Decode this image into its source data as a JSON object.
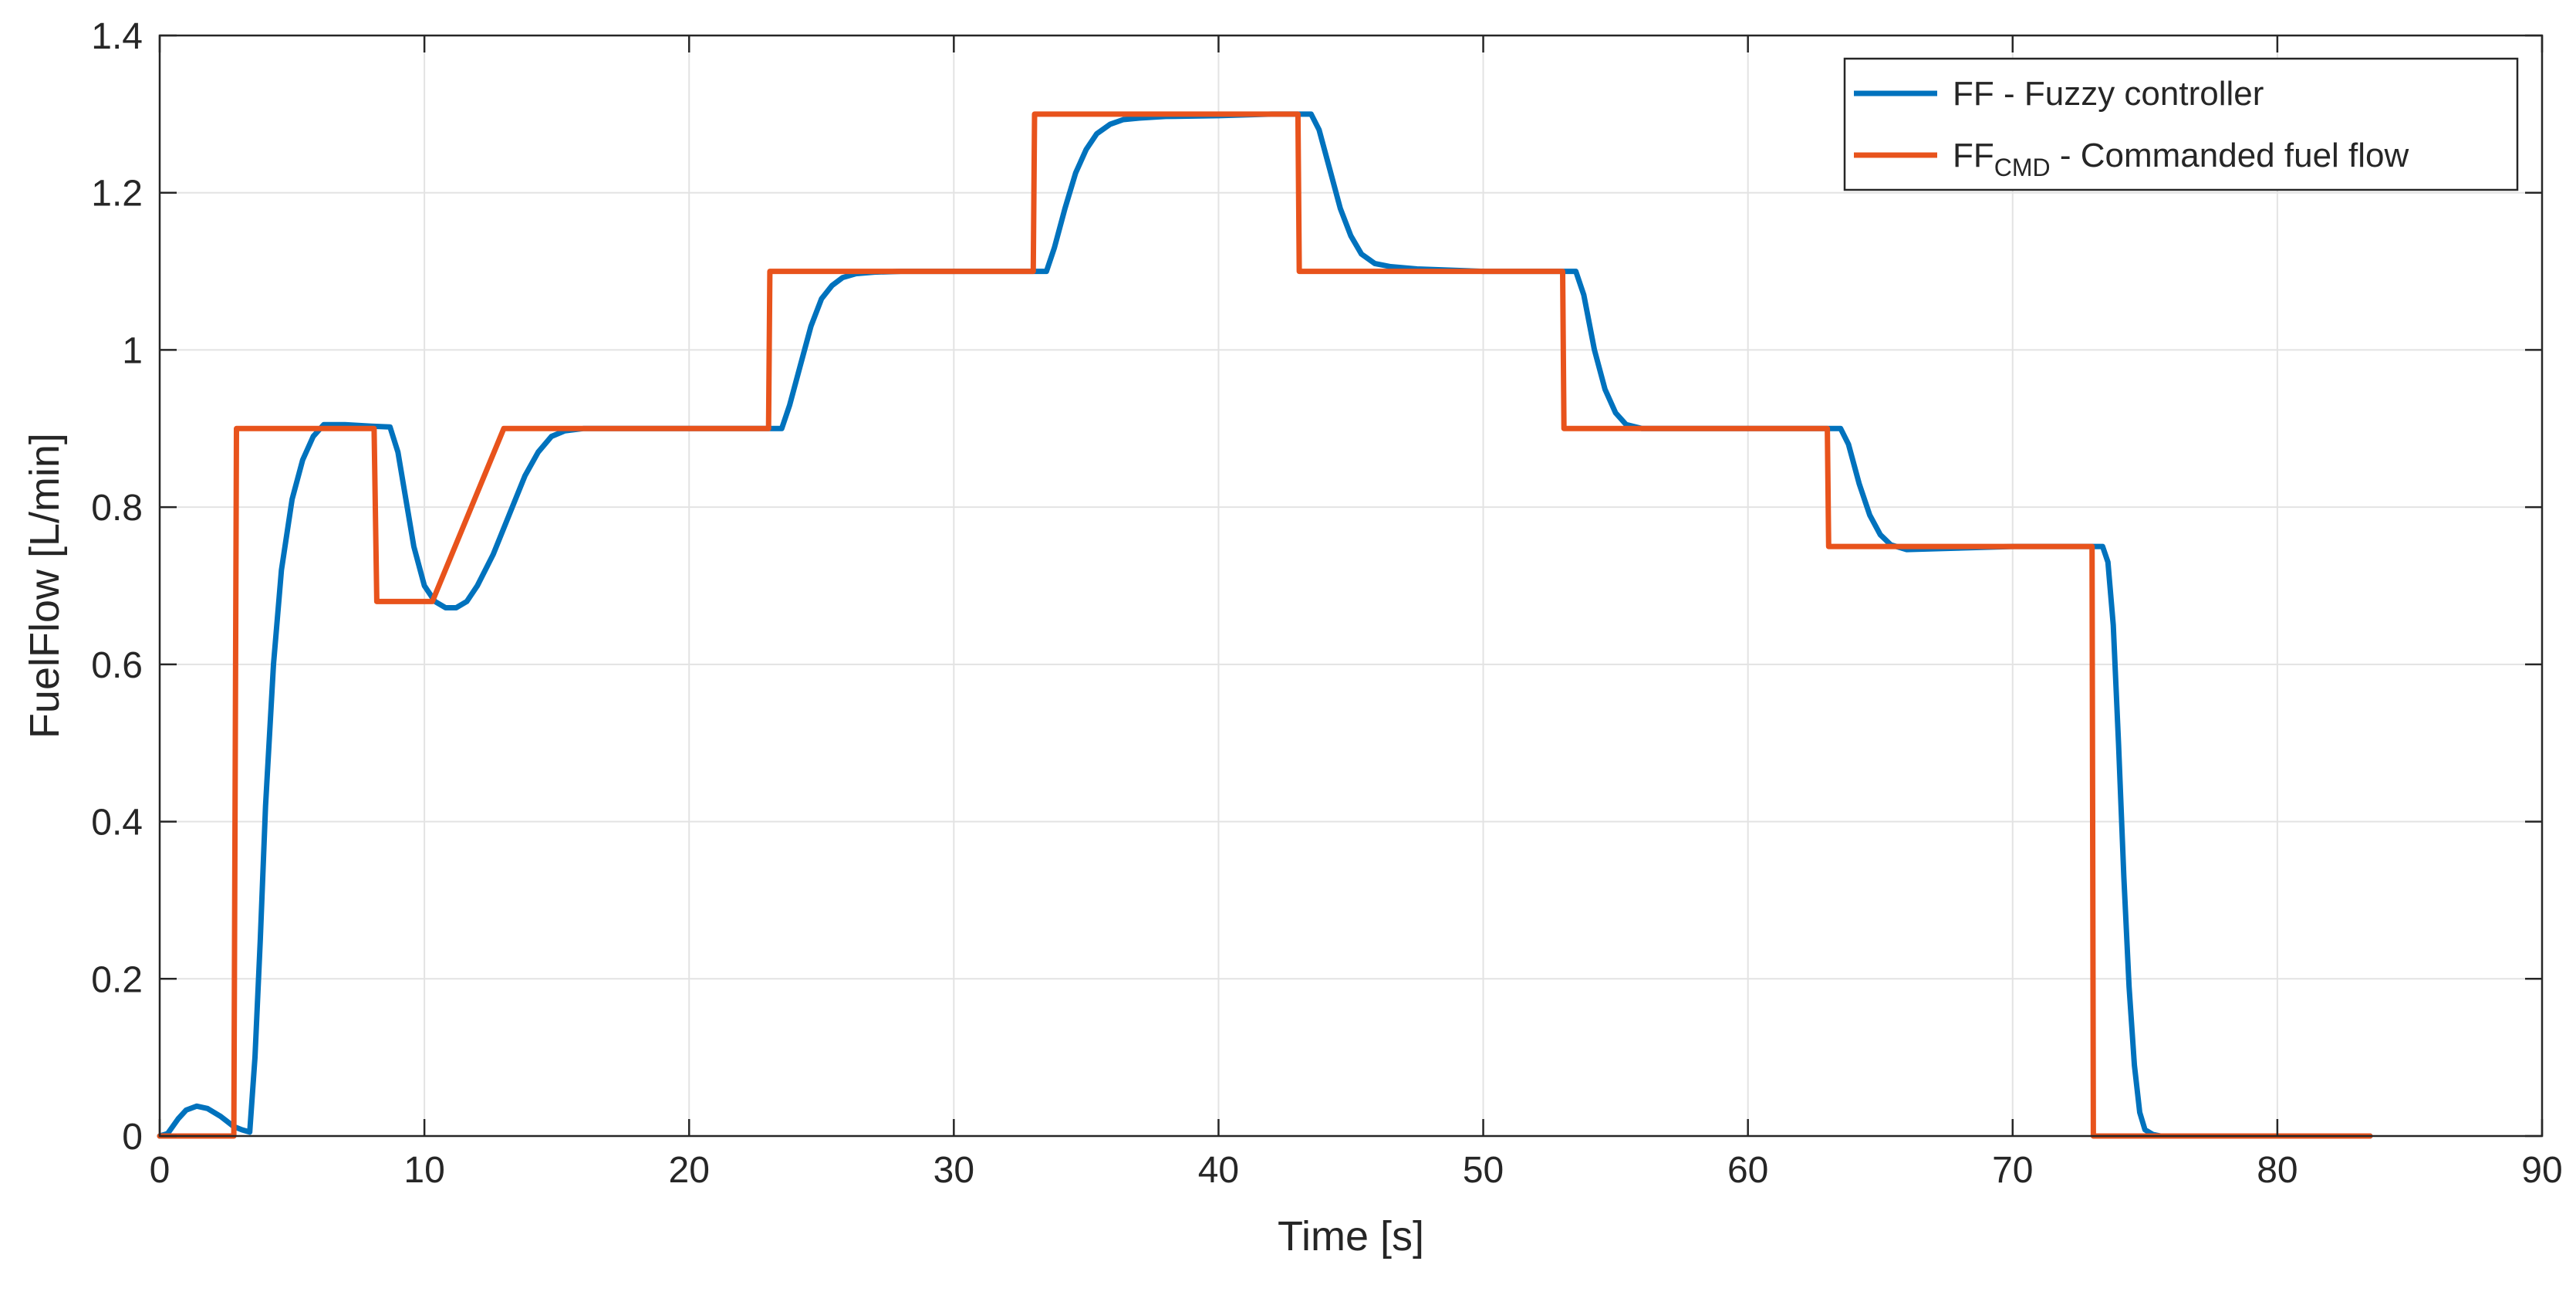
{
  "chart_data": {
    "type": "line",
    "xlabel": "Time [s]",
    "ylabel": "FuelFlow [L/min]",
    "xlim": [
      0,
      90
    ],
    "ylim": [
      0,
      1.4
    ],
    "xticks": [
      0,
      10,
      20,
      30,
      40,
      50,
      60,
      70,
      80,
      90
    ],
    "xtick_labels": [
      "0",
      "10",
      "20",
      "30",
      "40",
      "50",
      "60",
      "70",
      "80",
      "90"
    ],
    "yticks": [
      0,
      0.2,
      0.4,
      0.6,
      0.8,
      1.0,
      1.2,
      1.4
    ],
    "ytick_labels": [
      "0",
      "0.2",
      "0.4",
      "0.6",
      "0.8",
      "1",
      "1.2",
      "1.4"
    ],
    "grid": true,
    "legend_position": "top-right",
    "series": [
      {
        "name": "FF - Fuzzy controller",
        "legend": {
          "main": "FF - Fuzzy controller",
          "sub": "",
          "rest": ""
        },
        "color": "#0072BD",
        "x": [
          0,
          0.3,
          0.7,
          1.0,
          1.4,
          1.8,
          2.3,
          2.8,
          3.1,
          3.4,
          3.6,
          3.8,
          4.0,
          4.3,
          4.6,
          5.0,
          5.4,
          5.8,
          6.2,
          7.0,
          8.0,
          8.7,
          9.0,
          9.3,
          9.6,
          10.0,
          10.4,
          10.8,
          11.2,
          11.6,
          12.0,
          12.6,
          13.2,
          13.8,
          14.3,
          14.8,
          15.3,
          16.0,
          18.0,
          20.0,
          23.0,
          23.5,
          23.8,
          24.2,
          24.6,
          25.0,
          25.4,
          25.8,
          26.3,
          27.0,
          28.0,
          30.0,
          33.0,
          33.5,
          33.8,
          34.2,
          34.6,
          35.0,
          35.4,
          35.9,
          36.4,
          37.0,
          38.0,
          40.0,
          42.0,
          43.0,
          43.5,
          43.8,
          44.2,
          44.6,
          45.0,
          45.4,
          45.9,
          46.5,
          47.5,
          50.0,
          53.0,
          53.5,
          53.8,
          54.2,
          54.6,
          55.0,
          55.4,
          56.0,
          58.0,
          63.0,
          63.5,
          63.8,
          64.2,
          64.6,
          65.0,
          65.4,
          66.0,
          70.0,
          73.0,
          73.4,
          73.6,
          73.8,
          74.0,
          74.2,
          74.4,
          74.6,
          74.8,
          75.0,
          75.3,
          75.6,
          80.0,
          83.5
        ],
        "y": [
          0,
          0.003,
          0.022,
          0.033,
          0.038,
          0.035,
          0.025,
          0.012,
          0.008,
          0.005,
          0.1,
          0.25,
          0.42,
          0.6,
          0.72,
          0.81,
          0.86,
          0.89,
          0.905,
          0.905,
          0.903,
          0.902,
          0.87,
          0.81,
          0.75,
          0.7,
          0.68,
          0.672,
          0.672,
          0.68,
          0.7,
          0.74,
          0.79,
          0.84,
          0.87,
          0.89,
          0.897,
          0.9,
          0.9,
          0.9,
          0.9,
          0.9,
          0.93,
          0.98,
          1.03,
          1.065,
          1.082,
          1.092,
          1.097,
          1.099,
          1.1,
          1.1,
          1.1,
          1.1,
          1.13,
          1.18,
          1.225,
          1.255,
          1.275,
          1.287,
          1.293,
          1.295,
          1.297,
          1.298,
          1.3,
          1.3,
          1.3,
          1.28,
          1.23,
          1.18,
          1.145,
          1.122,
          1.11,
          1.106,
          1.103,
          1.1,
          1.1,
          1.1,
          1.07,
          1.0,
          0.95,
          0.92,
          0.905,
          0.9,
          0.9,
          0.9,
          0.9,
          0.88,
          0.83,
          0.79,
          0.765,
          0.752,
          0.746,
          0.75,
          0.75,
          0.75,
          0.73,
          0.65,
          0.5,
          0.33,
          0.19,
          0.09,
          0.03,
          0.008,
          0.002,
          0,
          0,
          0
        ]
      },
      {
        "name": "FFCMD - Commanded fuel flow",
        "legend": {
          "main": "FF",
          "sub": "CMD",
          "rest": " - Commanded fuel flow"
        },
        "color": "#E8531C",
        "x": [
          0,
          2.8,
          2.9,
          8.1,
          8.2,
          10.3,
          13.0,
          23.0,
          23.05,
          33.0,
          33.05,
          43.0,
          43.05,
          53.0,
          53.05,
          63.0,
          63.05,
          73.0,
          73.05,
          83.5
        ],
        "y": [
          0,
          0,
          0.9,
          0.9,
          0.68,
          0.68,
          0.9,
          0.9,
          1.1,
          1.1,
          1.3,
          1.3,
          1.1,
          1.1,
          0.9,
          0.9,
          0.75,
          0.75,
          0,
          0
        ]
      }
    ]
  }
}
